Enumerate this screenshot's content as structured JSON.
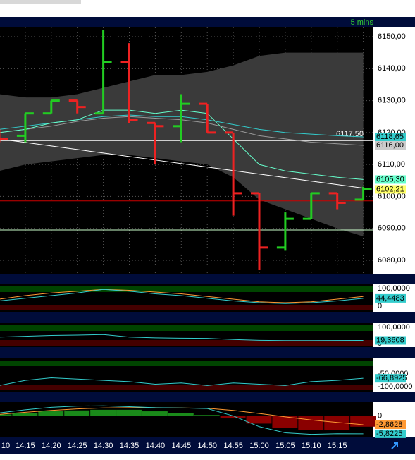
{
  "header": {
    "interval": "5 mins"
  },
  "chart_data": [
    {
      "type": "ohlc",
      "categories": [
        "10",
        "14:15",
        "14:20",
        "14:25",
        "14:30",
        "14:35",
        "14:40",
        "14:45",
        "14:50",
        "14:55",
        "15:00",
        "15:05",
        "15:10",
        "15:15",
        null
      ],
      "open": [
        6120,
        6119,
        6126,
        6130,
        6126,
        6142,
        6123,
        6122,
        6129,
        6120,
        6101,
        6084,
        6093,
        6101,
        6099
      ],
      "high": [
        6121,
        6126,
        6130,
        6130,
        6152,
        6148,
        6123,
        6132,
        6129,
        6120,
        6101,
        6095,
        6101,
        6101,
        6103
      ],
      "low": [
        6117,
        6117,
        6126,
        6126,
        6126,
        6123,
        6110,
        6117,
        6120,
        6094,
        6077,
        6083,
        6093,
        6096,
        6099
      ],
      "close": [
        6118,
        6126,
        6130,
        6128,
        6142,
        6124,
        6122,
        6129,
        6120,
        6101,
        6084,
        6093,
        6101,
        6098,
        6102.21
      ],
      "close_label": "6102,21",
      "up_color": "#22cc22",
      "down_color": "#ee2222",
      "ylim": [
        6075.8,
        6153.1
      ],
      "yticks": [
        {
          "value": 6080,
          "label": "6080,00"
        },
        {
          "value": 6090,
          "label": "6090,00"
        },
        {
          "value": 6100,
          "label": "6100,00"
        },
        {
          "value": 6110,
          "label": "6110,00"
        },
        {
          "value": 6120,
          "label": "6120,00"
        },
        {
          "value": 6130,
          "label": "6130,00"
        },
        {
          "value": 6140,
          "label": "6140,00"
        },
        {
          "value": 6150,
          "label": "6150,00"
        }
      ],
      "grid": true,
      "band": {
        "color": "#3a3a3a",
        "upper": [
          6132,
          6131,
          6131,
          6132,
          6134,
          6136,
          6138,
          6138,
          6139,
          6141,
          6144,
          6145,
          6145,
          6145,
          6145
        ],
        "lower": [
          6108,
          6110,
          6111,
          6112,
          6113,
          6113,
          6112,
          6111,
          6110,
          6106,
          6099,
          6096,
          6093,
          6090,
          6087.5
        ]
      },
      "series": [
        {
          "color": "#ffffff",
          "values": [
            6118,
            6116.9,
            6115.8,
            6114.7,
            6113.6,
            6112.5,
            6111.4,
            6110.3,
            6109.2,
            6108.1,
            6107,
            6105.9,
            6104.8,
            6103.7,
            6102.6
          ]
        },
        {
          "color": "#999999",
          "values": [
            6120,
            6121,
            6122,
            6123.5,
            6124.5,
            6125,
            6124.5,
            6124,
            6123,
            6121,
            6119,
            6118,
            6117,
            6116.5,
            6116
          ],
          "value_label": "6116,00"
        },
        {
          "color": "#33cccc",
          "values": [
            6121,
            6122,
            6123,
            6124,
            6125,
            6125.5,
            6125,
            6125,
            6124,
            6122.5,
            6121,
            6120,
            6119.5,
            6119,
            6118.65
          ],
          "value_label": "6118,65"
        },
        {
          "color": "#66ffcc",
          "values": [
            6120,
            6121,
            6123,
            6124,
            6127,
            6127,
            6126,
            6127,
            6126,
            6118,
            6110,
            6108,
            6107,
            6106,
            6105.3
          ],
          "value_label": "6105,30"
        }
      ],
      "hlines": [
        {
          "value": 6117.5,
          "label": "6117,50",
          "color": "#ffffff"
        },
        {
          "value": 6098.6,
          "color": "#cc0000"
        },
        {
          "value": 6089.5,
          "color": "#ccffcc"
        }
      ]
    },
    {
      "type": "line",
      "ylim": [
        -32,
        124
      ],
      "yticks": [
        0,
        {
          "value": 100,
          "label": "100,0000"
        }
      ],
      "series": [
        {
          "color": "#ff9933",
          "values": [
            40,
            60,
            75,
            85,
            95,
            90,
            80,
            70,
            55,
            40,
            25,
            20,
            25,
            40,
            55
          ]
        },
        {
          "color": "#33cccc",
          "values": [
            30,
            45,
            60,
            75,
            95,
            85,
            70,
            60,
            45,
            30,
            20,
            15,
            20,
            30,
            44.4483
          ],
          "value_label": "44,4483"
        }
      ]
    },
    {
      "type": "line",
      "ylim": [
        -22,
        126
      ],
      "yticks": [
        0,
        {
          "value": 100,
          "label": "100,0000"
        }
      ],
      "series": [
        {
          "color": "#33cccc",
          "values": [
            40,
            45,
            50,
            52,
            55,
            40,
            35,
            33,
            32,
            25,
            20,
            18,
            18,
            19,
            19.3608
          ],
          "value_label": "19,3608"
        }
      ]
    },
    {
      "type": "line",
      "ylim": [
        -119,
        11
      ],
      "yticks": [
        {
          "value": -100,
          "label": "-100,0000"
        },
        {
          "value": -50,
          "label": "-50,0000"
        }
      ],
      "series": [
        {
          "color": "#33cccc",
          "values": [
            -95,
            -75,
            -65,
            -70,
            -75,
            -80,
            -90,
            -85,
            -95,
            -85,
            -90,
            -95,
            -80,
            -75,
            -66.8925
          ],
          "value_label": "-66,8925"
        }
      ]
    },
    {
      "type": "line",
      "ylim": [
        -7,
        4.5
      ],
      "yticks": [
        0
      ],
      "histogram": {
        "up_color": "#1a8a1a",
        "down_color": "#8a0000",
        "values": [
          0.5,
          1,
          1.5,
          1.8,
          2,
          2,
          1.5,
          1,
          0.3,
          -0.8,
          -2.5,
          -3.8,
          -4.5,
          -4.5,
          -3.5
        ]
      },
      "series": [
        {
          "color": "#ff9933",
          "values": [
            0.5,
            1.2,
            1.8,
            2.3,
            2.6,
            2.7,
            2.7,
            2.6,
            2.5,
            1.8,
            0.8,
            -0.3,
            -1.3,
            -2.1,
            -2.8628
          ],
          "value_label": "-2,8628"
        },
        {
          "color": "#33cccc",
          "values": [
            1,
            2,
            2.8,
            3.2,
            3.3,
            3,
            2.7,
            2.6,
            2.4,
            0,
            -3.5,
            -5.5,
            -6,
            -5.8,
            -5.8225
          ],
          "value_label": "-5,8225"
        }
      ]
    }
  ]
}
